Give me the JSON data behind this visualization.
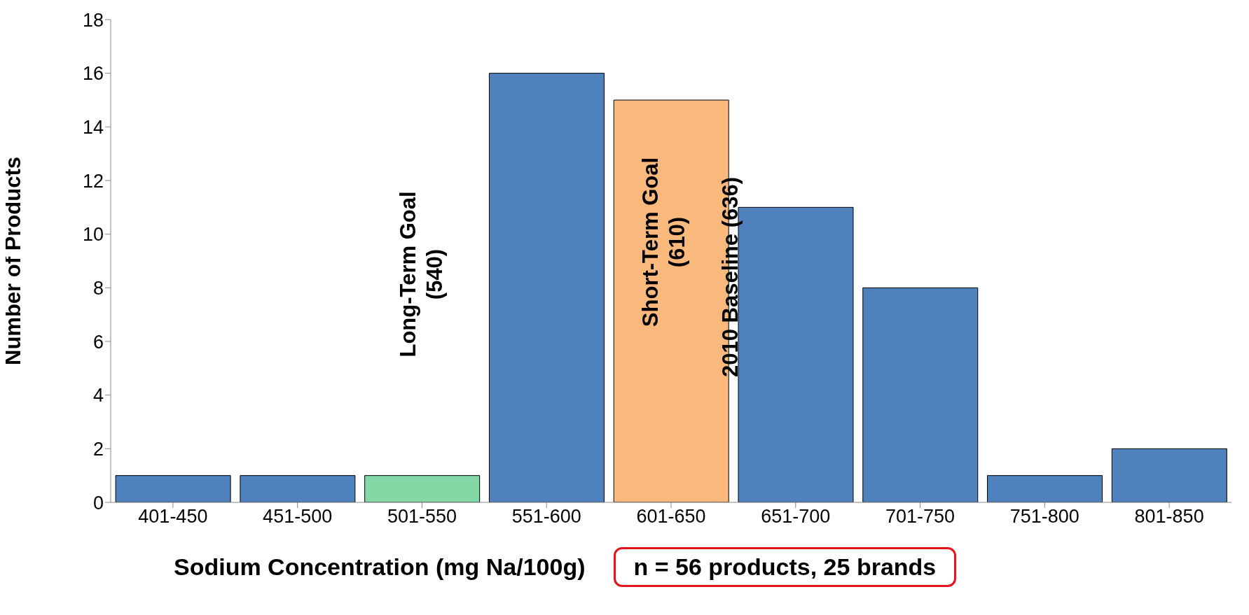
{
  "chart_data": {
    "type": "bar",
    "xlabel": "Sodium Concentration (mg Na/100g)",
    "ylabel": "Number of Products",
    "categories": [
      "401-450",
      "451-500",
      "501-550",
      "551-600",
      "601-650",
      "651-700",
      "701-750",
      "751-800",
      "801-850"
    ],
    "values": [
      1,
      1,
      1,
      16,
      15,
      11,
      8,
      1,
      2
    ],
    "colors": [
      "#4f81bd",
      "#4f81bd",
      "#83d8a6",
      "#4f81bd",
      "#f9b97c",
      "#4f81bd",
      "#4f81bd",
      "#4f81bd",
      "#4f81bd"
    ],
    "ylim": [
      0,
      18
    ],
    "yticks": [
      0,
      2,
      4,
      6,
      8,
      10,
      12,
      14,
      16,
      18
    ],
    "grid": false,
    "legend": false,
    "annotations": [
      "Long-Term Goal\n(540)",
      "Short-Term Goal\n(610)",
      "2010 Baseline (636)",
      "n = 56 products, 25 brands"
    ]
  }
}
